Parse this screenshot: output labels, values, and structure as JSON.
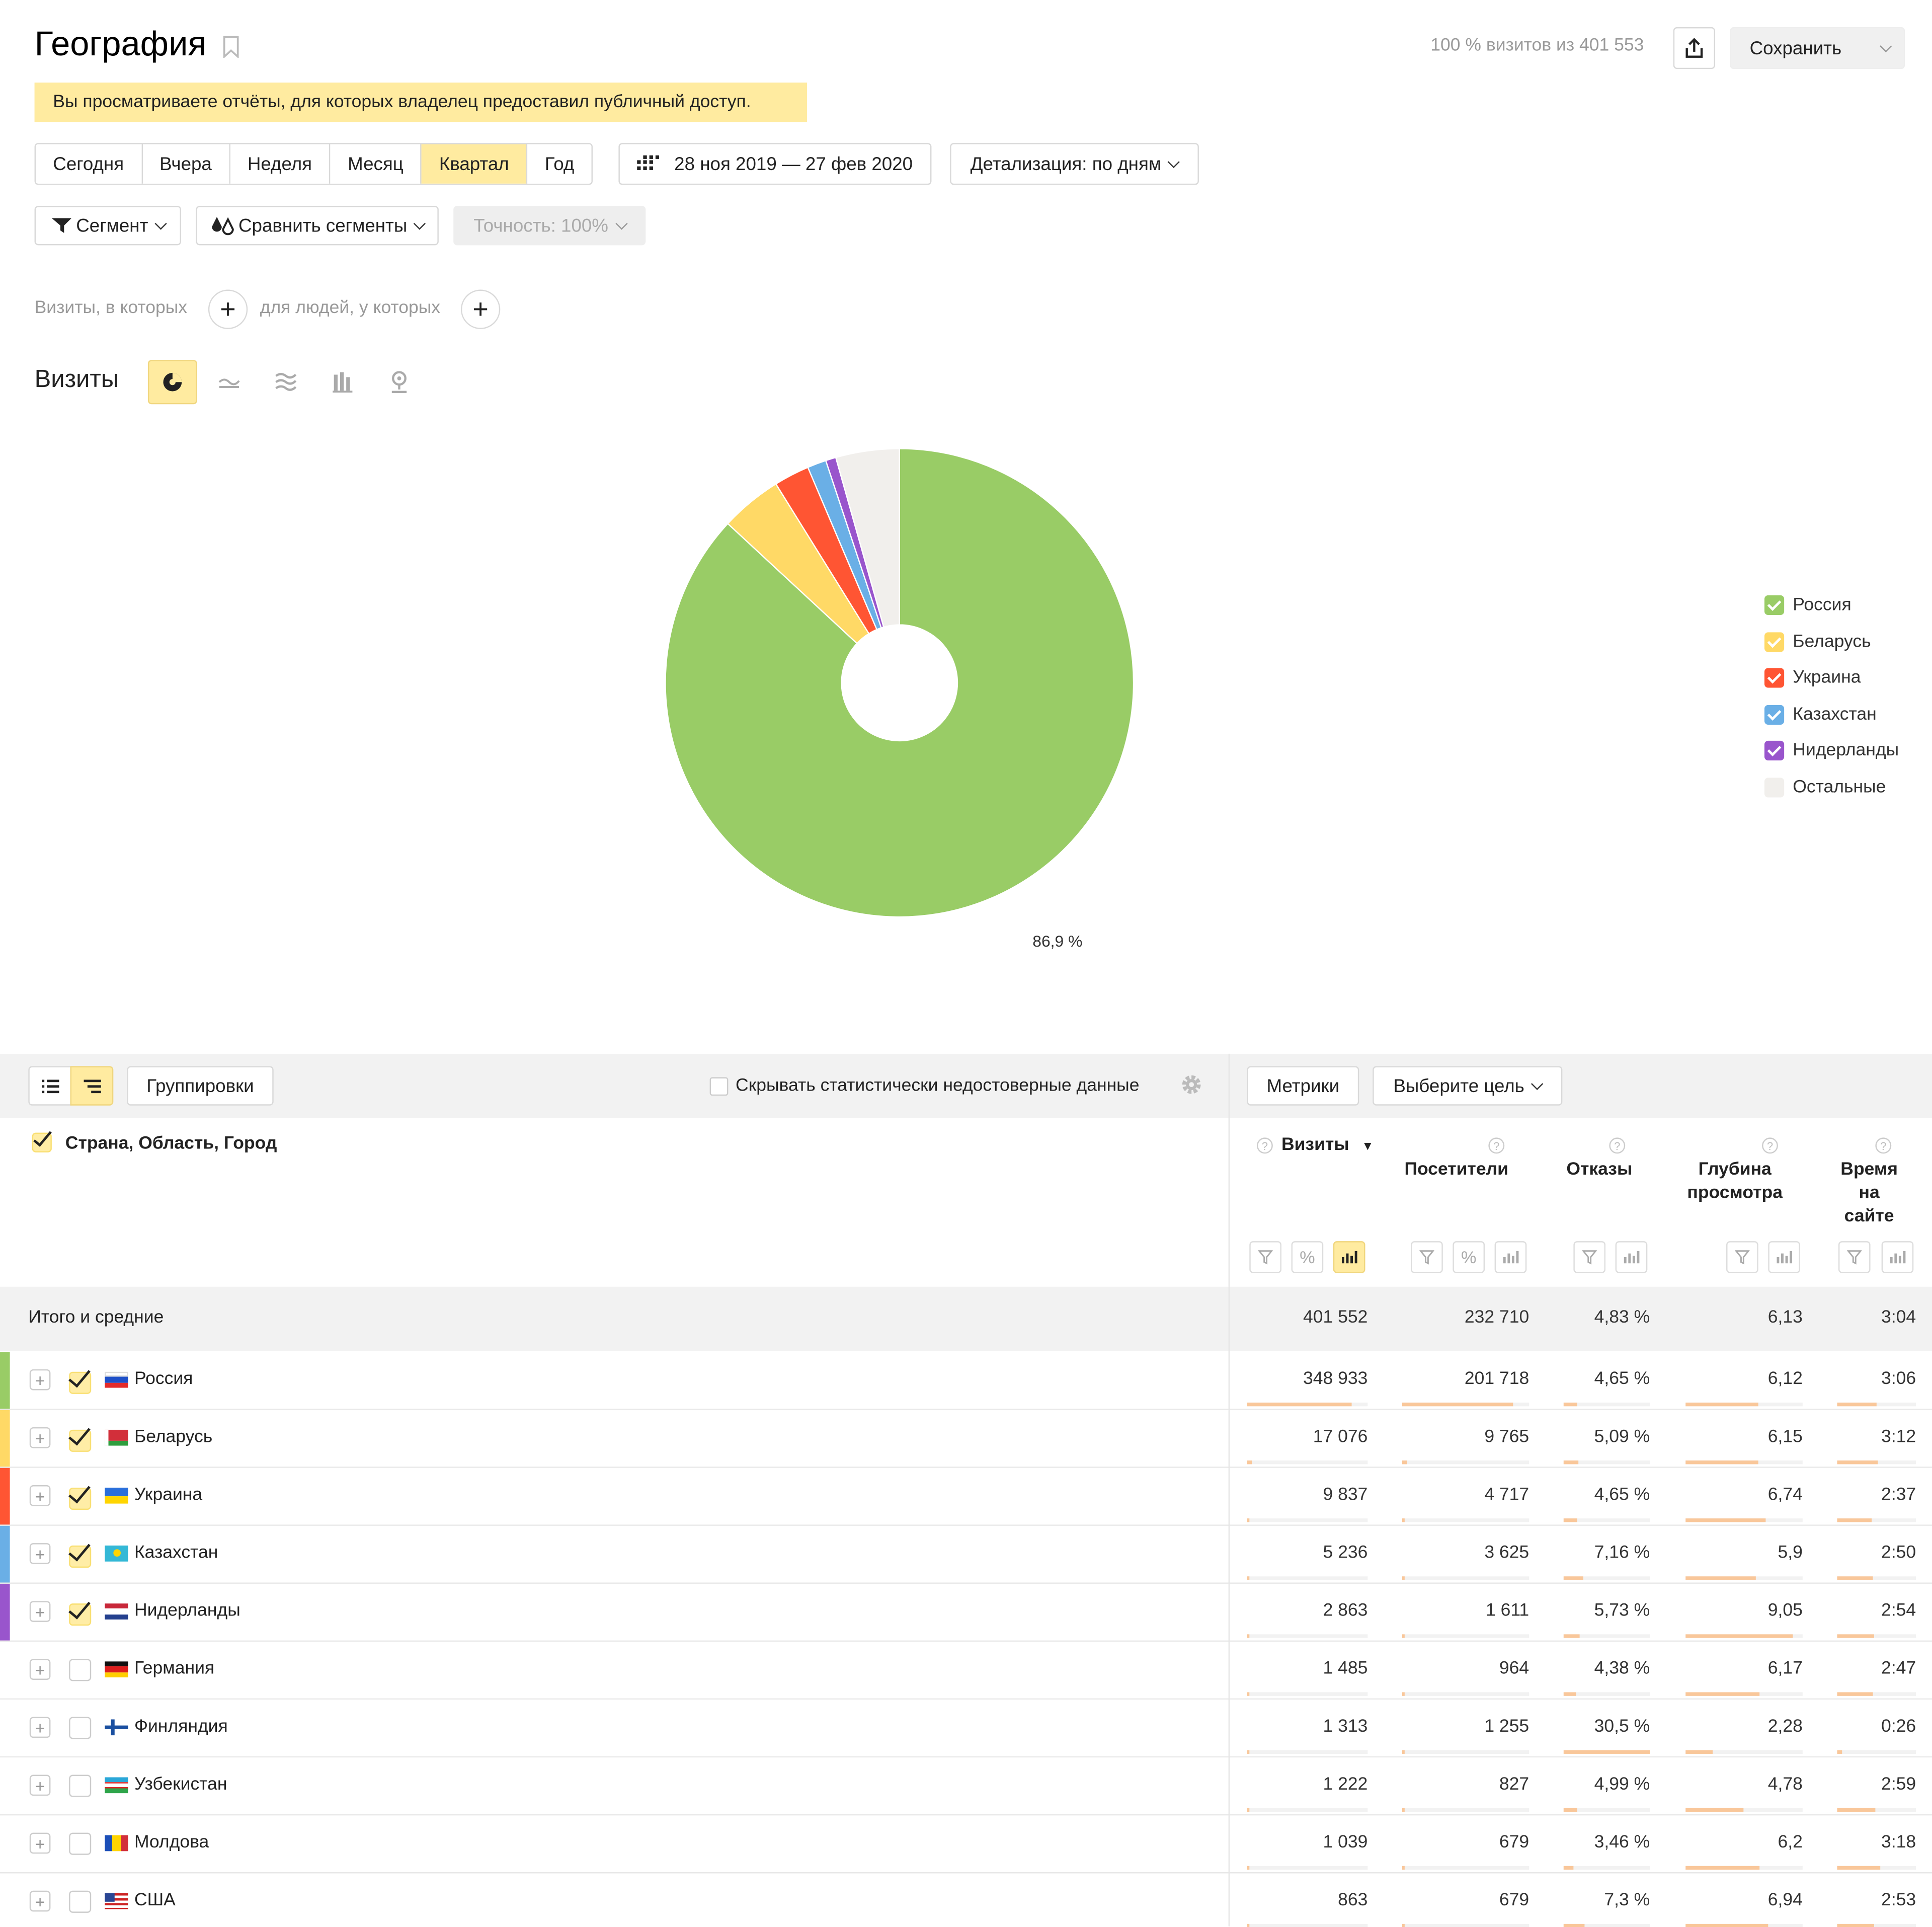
{
  "header": {
    "title": "География",
    "visits_info": "100 % визитов из 401 553",
    "save_label": "Сохранить"
  },
  "banner": "Вы просматриваете отчёты, для которых владелец предоставил публичный доступ.",
  "period": {
    "buttons": [
      "Сегодня",
      "Вчера",
      "Неделя",
      "Месяц",
      "Квартал",
      "Год"
    ],
    "active": "Квартал",
    "date_range": "28 ноя 2019 — 27 фев 2020",
    "detail_label": "Детализация: по дням"
  },
  "filters": {
    "segment_label": "Сегмент",
    "compare_label": "Сравнить сегменты",
    "accuracy_label": "Точность: 100%",
    "visits_where": "Визиты, в которых",
    "people_where": "для людей, у которых"
  },
  "chart_section": {
    "title": "Визиты",
    "view_icons": [
      "pie-chart-icon",
      "line-chart-icon",
      "area-chart-icon",
      "bar-chart-icon",
      "map-icon"
    ]
  },
  "chart_data": {
    "type": "pie",
    "donut": true,
    "slices": [
      {
        "label": "Россия",
        "value": 348933,
        "color": "#99cc66"
      },
      {
        "label": "Беларусь",
        "value": 17076,
        "color": "#ffd966"
      },
      {
        "label": "Украина",
        "value": 9837,
        "color": "#ff5533"
      },
      {
        "label": "Казахстан",
        "value": 5236,
        "color": "#6aafe6"
      },
      {
        "label": "Нидерланды",
        "value": 2863,
        "color": "#9955cc"
      },
      {
        "label": "Остальные",
        "value": 17607,
        "color": "#f1efec"
      }
    ],
    "annotation": "86,9 %",
    "legend_position": "right"
  },
  "legend": [
    {
      "label": "Россия",
      "color": "#99cc66",
      "checked": true
    },
    {
      "label": "Беларусь",
      "color": "#ffd966",
      "checked": true
    },
    {
      "label": "Украина",
      "color": "#ff5533",
      "checked": true
    },
    {
      "label": "Казахстан",
      "color": "#6aafe6",
      "checked": true
    },
    {
      "label": "Нидерланды",
      "color": "#9955cc",
      "checked": true
    },
    {
      "label": "Остальные",
      "color": "#f1efec",
      "checked": false
    }
  ],
  "table": {
    "groupings_label": "Группировки",
    "hide_unreliable_label": "Скрывать статистически недостоверные данные",
    "metrics_label": "Метрики",
    "goal_label": "Выберите цель",
    "dimension_header": "Страна, Область, Город",
    "columns": [
      {
        "label": "Визиты",
        "sort": "▼"
      },
      {
        "label": "Посетители"
      },
      {
        "label": "Отказы"
      },
      {
        "label": "Глубина просмотра"
      },
      {
        "label": "Время на сайте"
      }
    ],
    "totals": {
      "label": "Итого и средние",
      "values": [
        "401 552",
        "232 710",
        "4,83 %",
        "6,13",
        "3:04"
      ]
    },
    "rows": [
      {
        "name": "Россия",
        "checked": true,
        "color": "#99cc66",
        "values": [
          "348 933",
          "201 718",
          "4,65 %",
          "6,12",
          "3:06"
        ],
        "fills": [
          0.87,
          0.87,
          0.15,
          0.62,
          0.5
        ]
      },
      {
        "name": "Беларусь",
        "checked": true,
        "color": "#ffd966",
        "values": [
          "17 076",
          "9 765",
          "5,09 %",
          "6,15",
          "3:12"
        ],
        "fills": [
          0.04,
          0.04,
          0.17,
          0.62,
          0.52
        ]
      },
      {
        "name": "Украина",
        "checked": true,
        "color": "#ff5533",
        "values": [
          "9 837",
          "4 717",
          "4,65 %",
          "6,74",
          "2:37"
        ],
        "fills": [
          0.02,
          0.02,
          0.15,
          0.68,
          0.43
        ]
      },
      {
        "name": "Казахстан",
        "checked": true,
        "color": "#6aafe6",
        "values": [
          "5 236",
          "3 625",
          "7,16 %",
          "5,9",
          "2:50"
        ],
        "fills": [
          0.01,
          0.01,
          0.23,
          0.6,
          0.46
        ]
      },
      {
        "name": "Нидерланды",
        "checked": true,
        "color": "#9955cc",
        "values": [
          "2 863",
          "1 611",
          "5,73 %",
          "9,05",
          "2:54"
        ],
        "fills": [
          0.01,
          0.01,
          0.19,
          0.92,
          0.47
        ]
      },
      {
        "name": "Германия",
        "checked": false,
        "color": "",
        "values": [
          "1 485",
          "964",
          "4,38 %",
          "6,17",
          "2:47"
        ],
        "fills": [
          0.004,
          0.004,
          0.14,
          0.63,
          0.45
        ]
      },
      {
        "name": "Финляндия",
        "checked": false,
        "color": "",
        "values": [
          "1 313",
          "1 255",
          "30,5 %",
          "2,28",
          "0:26"
        ],
        "fills": [
          0.004,
          0.005,
          1.0,
          0.23,
          0.07
        ]
      },
      {
        "name": "Узбекистан",
        "checked": false,
        "color": "",
        "values": [
          "1 222",
          "827",
          "4,99 %",
          "4,78",
          "2:59"
        ],
        "fills": [
          0.004,
          0.004,
          0.16,
          0.49,
          0.49
        ]
      },
      {
        "name": "Молдова",
        "checked": false,
        "color": "",
        "values": [
          "1 039",
          "679",
          "3,46 %",
          "6,2",
          "3:18"
        ],
        "fills": [
          0.003,
          0.003,
          0.11,
          0.63,
          0.54
        ]
      },
      {
        "name": "США",
        "checked": false,
        "color": "",
        "values": [
          "863",
          "679",
          "7,3 %",
          "6,94",
          "2:53"
        ],
        "fills": [
          0.003,
          0.003,
          0.24,
          0.71,
          0.47
        ]
      }
    ]
  }
}
